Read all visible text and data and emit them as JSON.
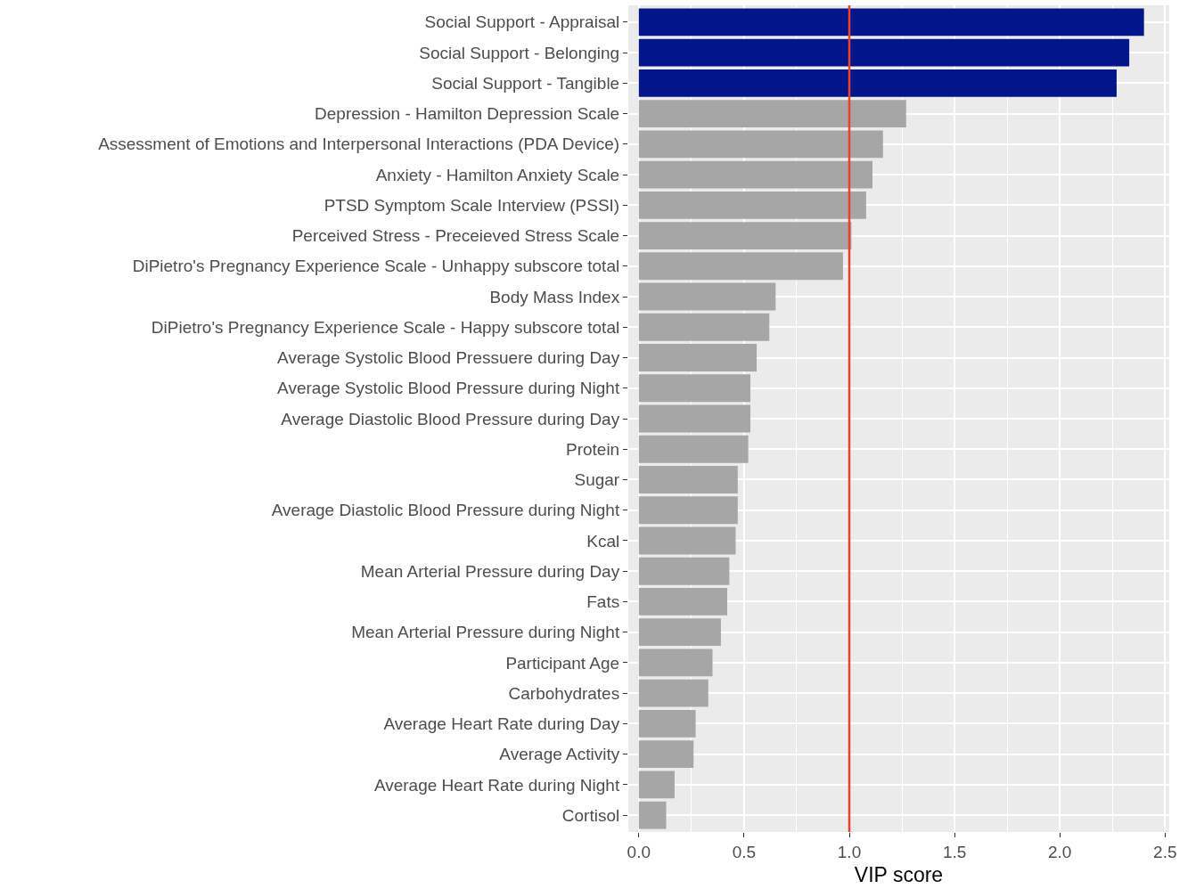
{
  "chart_data": {
    "type": "bar",
    "orientation": "horizontal",
    "xlabel": "VIP score",
    "categories": [
      "Social Support - Appraisal",
      "Social Support - Belonging",
      "Social Support - Tangible",
      "Depression - Hamilton Depression Scale",
      "Assessment of Emotions and Interpersonal Interactions (PDA Device)",
      "Anxiety - Hamilton Anxiety Scale",
      "PTSD Symptom Scale Interview (PSSI)",
      "Perceived Stress - Preceieved Stress Scale",
      "DiPietro's Pregnancy Experience Scale - Unhappy subscore total",
      "Body Mass Index",
      "DiPietro's Pregnancy Experience Scale - Happy subscore total",
      "Average Systolic Blood Pressuere during Day",
      "Average Systolic Blood Pressure during Night",
      "Average Diastolic Blood Pressure during Day",
      "Protein",
      "Sugar",
      "Average Diastolic Blood Pressure during Night",
      "Kcal",
      "Mean Arterial Pressure during Day",
      "Fats",
      "Mean Arterial Pressure during Night",
      "Participant Age",
      "Carbohydrates",
      "Average Heart Rate during Day",
      "Average Activity",
      "Average Heart Rate during Night",
      "Cortisol"
    ],
    "values": [
      2.4,
      2.33,
      2.27,
      1.27,
      1.16,
      1.11,
      1.08,
      1.01,
      0.97,
      0.65,
      0.62,
      0.56,
      0.53,
      0.53,
      0.52,
      0.47,
      0.47,
      0.46,
      0.43,
      0.42,
      0.39,
      0.35,
      0.33,
      0.27,
      0.26,
      0.17,
      0.13
    ],
    "colors": [
      "#001689",
      "#001689",
      "#001689",
      "#a6a6a6",
      "#a6a6a6",
      "#a6a6a6",
      "#a6a6a6",
      "#a6a6a6",
      "#a6a6a6",
      "#a6a6a6",
      "#a6a6a6",
      "#a6a6a6",
      "#a6a6a6",
      "#a6a6a6",
      "#a6a6a6",
      "#a6a6a6",
      "#a6a6a6",
      "#a6a6a6",
      "#a6a6a6",
      "#a6a6a6",
      "#a6a6a6",
      "#a6a6a6",
      "#a6a6a6",
      "#a6a6a6",
      "#a6a6a6",
      "#a6a6a6",
      "#a6a6a6"
    ],
    "xlim": [
      -0.05,
      2.52
    ],
    "xticks": [
      {
        "value": 0,
        "label": "0.0"
      },
      {
        "value": 0.5,
        "label": "0.5"
      },
      {
        "value": 1,
        "label": "1.0"
      },
      {
        "value": 1.5,
        "label": "1.5"
      },
      {
        "value": 2,
        "label": "2.0"
      },
      {
        "value": 2.5,
        "label": "2.5"
      }
    ],
    "ref_lines": [
      {
        "axis": "x",
        "value": 1,
        "color": "#e8412c"
      }
    ],
    "grid": true
  }
}
